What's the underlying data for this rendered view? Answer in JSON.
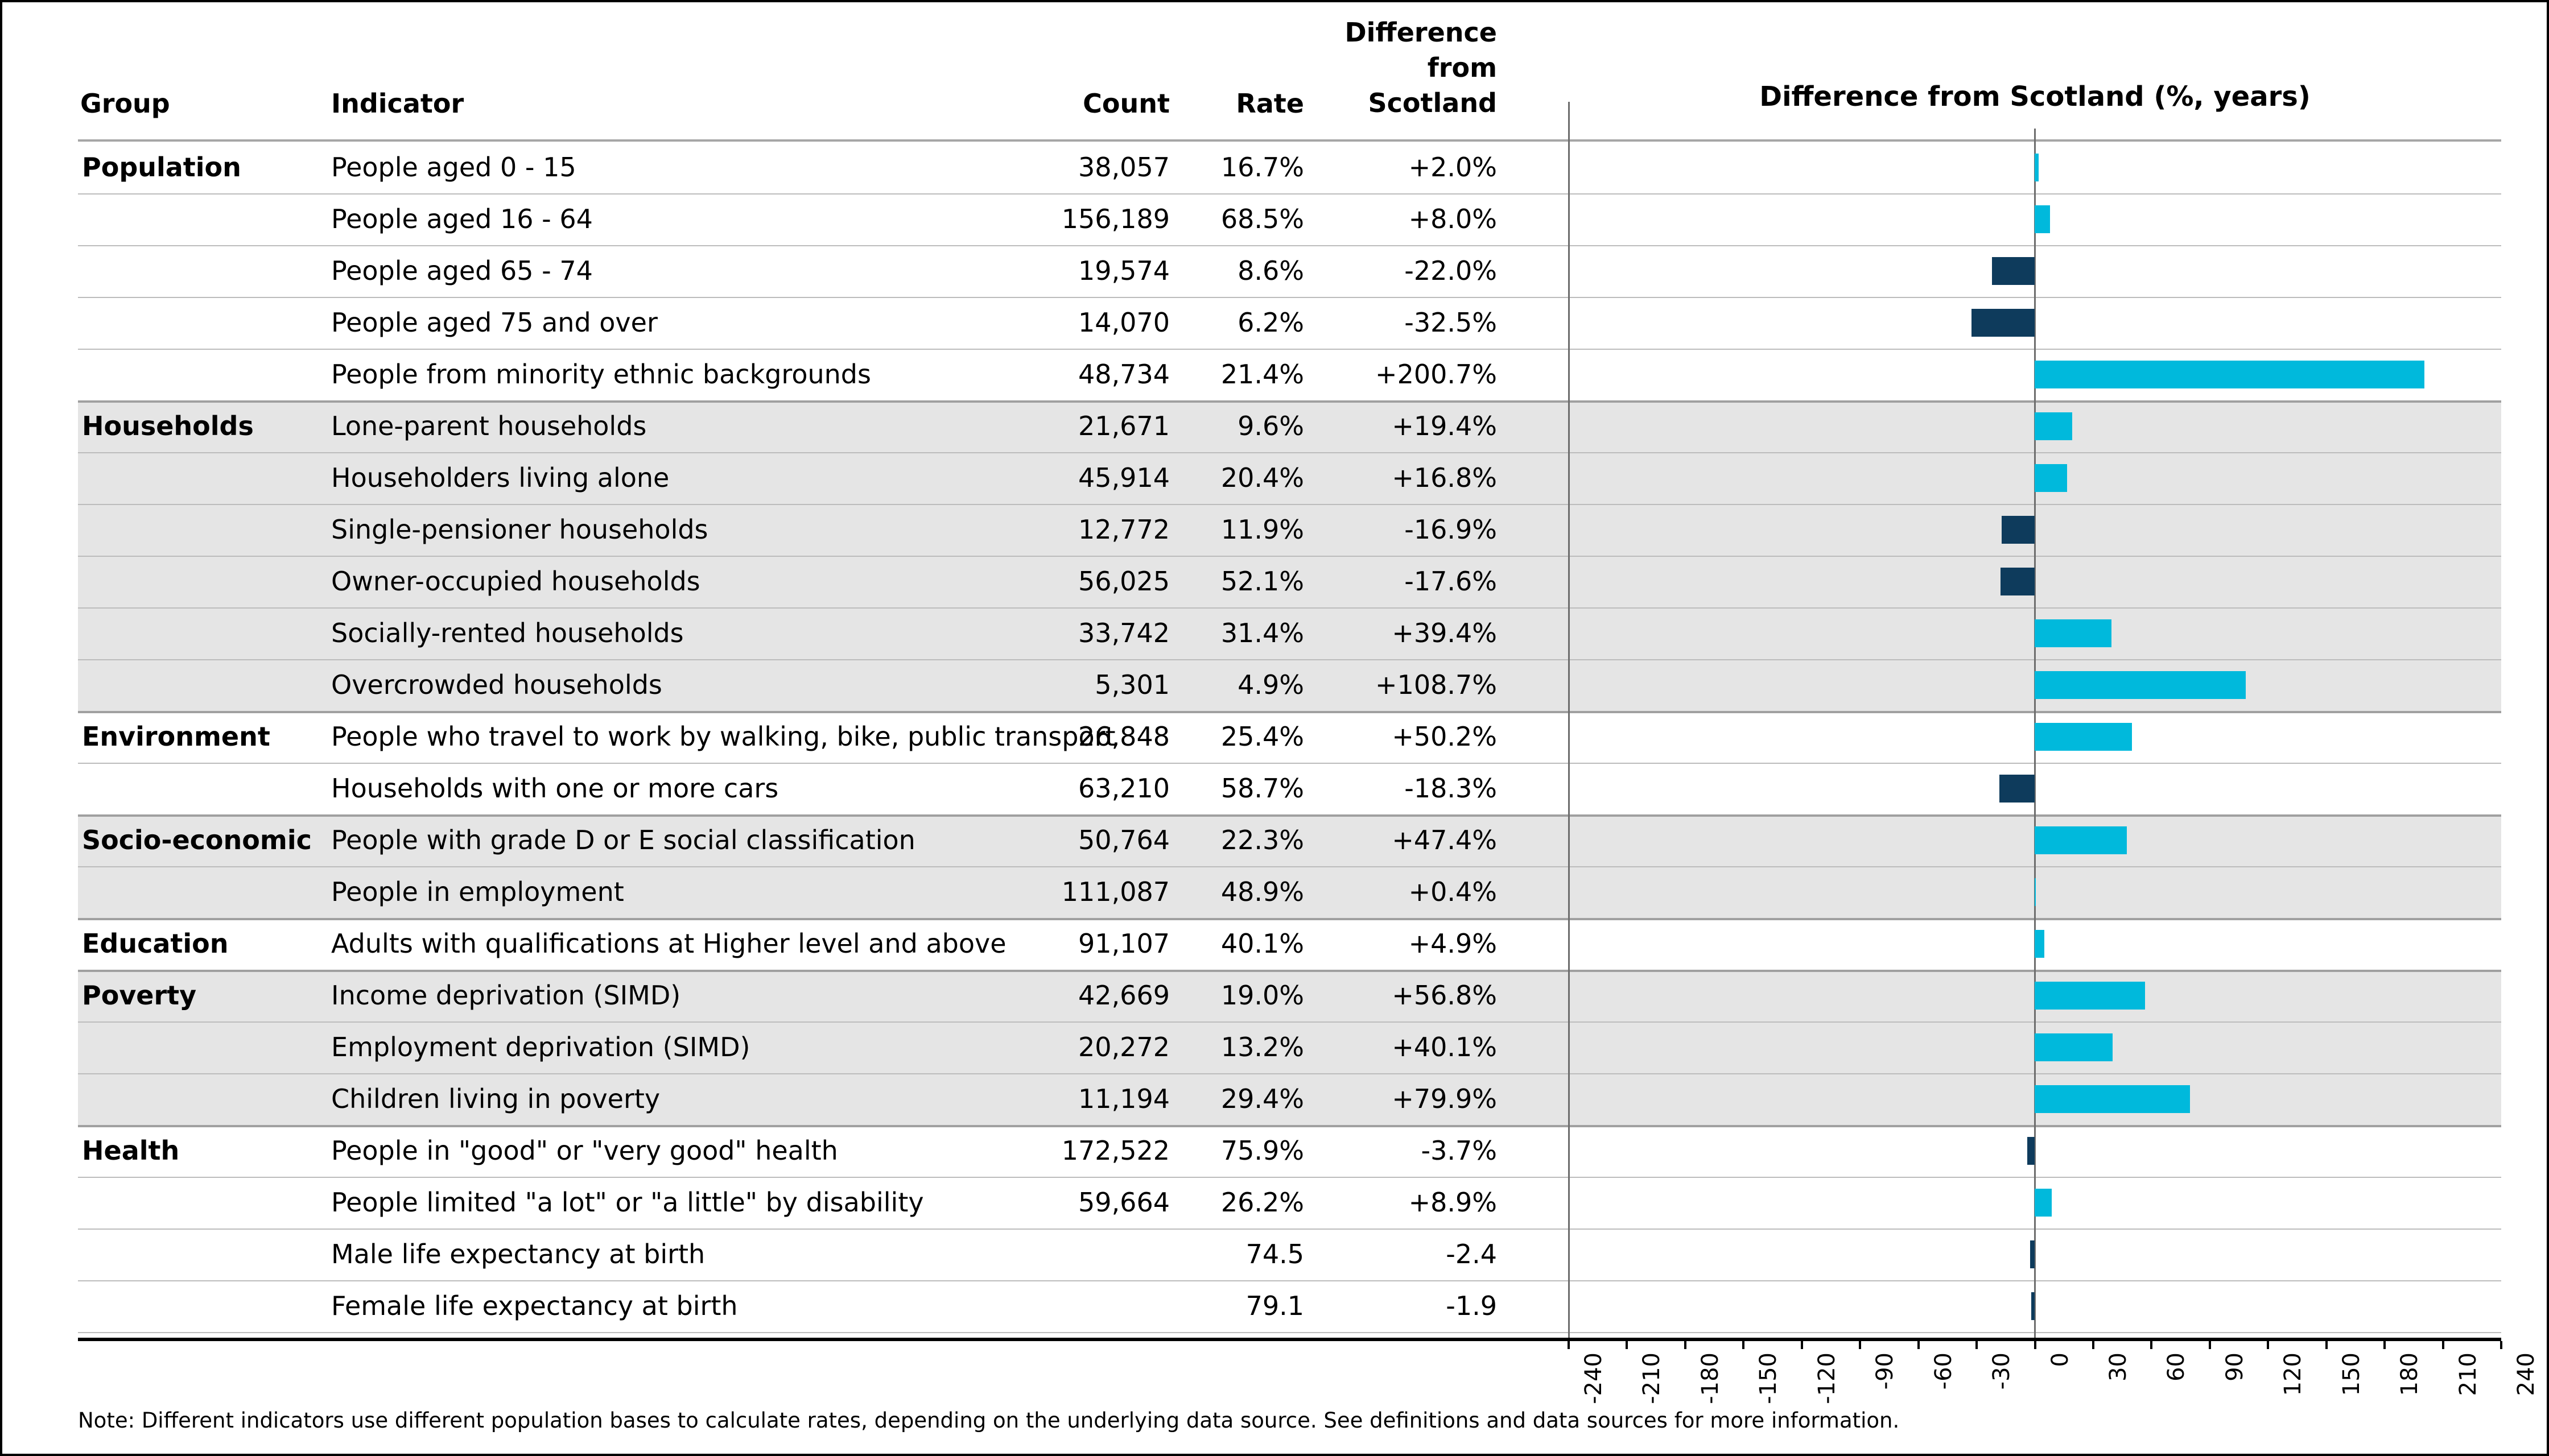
{
  "header": {
    "group": "Group",
    "indicator": "Indicator",
    "count": "Count",
    "rate": "Rate",
    "difference": "Difference\nfrom\nScotland"
  },
  "chart": {
    "title": "Difference from Scotland (%, years)",
    "ticks": [
      "-240",
      "-210",
      "-180",
      "-150",
      "-120",
      "-90",
      "-60",
      "-30",
      "0",
      "30",
      "60",
      "90",
      "120",
      "150",
      "180",
      "210",
      "240"
    ],
    "axis_min": -240,
    "axis_max": 240,
    "tick_interval": 30,
    "positive_color": "#00b9dc",
    "negative_color": "#0e3b5c",
    "band_color": "#e5e5e5"
  },
  "note": "Note: Different indicators use different population bases to calculate rates, depending on the underlying data source. See definitions and data sources for more information.",
  "rows": [
    {
      "group": "Population",
      "indicator": "People aged 0 - 15",
      "count": "38,057",
      "rate": "16.7%",
      "diff": "+2.0%",
      "value": 2.0,
      "gray": false,
      "group_start": true
    },
    {
      "group": "",
      "indicator": "People aged 16 - 64",
      "count": "156,189",
      "rate": "68.5%",
      "diff": "+8.0%",
      "value": 8.0,
      "gray": false,
      "group_start": false
    },
    {
      "group": "",
      "indicator": "People aged 65 - 74",
      "count": "19,574",
      "rate": "8.6%",
      "diff": "-22.0%",
      "value": -22.0,
      "gray": false,
      "group_start": false
    },
    {
      "group": "",
      "indicator": "People aged 75 and over",
      "count": "14,070",
      "rate": "6.2%",
      "diff": "-32.5%",
      "value": -32.5,
      "gray": false,
      "group_start": false
    },
    {
      "group": "",
      "indicator": "People from minority ethnic backgrounds",
      "count": "48,734",
      "rate": "21.4%",
      "diff": "+200.7%",
      "value": 200.7,
      "gray": false,
      "group_start": false
    },
    {
      "group": "Households",
      "indicator": "Lone-parent households",
      "count": "21,671",
      "rate": "9.6%",
      "diff": "+19.4%",
      "value": 19.4,
      "gray": true,
      "group_start": true
    },
    {
      "group": "",
      "indicator": "Householders living alone",
      "count": "45,914",
      "rate": "20.4%",
      "diff": "+16.8%",
      "value": 16.8,
      "gray": true,
      "group_start": false
    },
    {
      "group": "",
      "indicator": "Single-pensioner households",
      "count": "12,772",
      "rate": "11.9%",
      "diff": "-16.9%",
      "value": -16.9,
      "gray": true,
      "group_start": false
    },
    {
      "group": "",
      "indicator": "Owner-occupied households",
      "count": "56,025",
      "rate": "52.1%",
      "diff": "-17.6%",
      "value": -17.6,
      "gray": true,
      "group_start": false
    },
    {
      "group": "",
      "indicator": "Socially-rented households",
      "count": "33,742",
      "rate": "31.4%",
      "diff": "+39.4%",
      "value": 39.4,
      "gray": true,
      "group_start": false
    },
    {
      "group": "",
      "indicator": "Overcrowded households",
      "count": "5,301",
      "rate": "4.9%",
      "diff": "+108.7%",
      "value": 108.7,
      "gray": true,
      "group_start": false
    },
    {
      "group": "Environment",
      "indicator": "People who travel to work by walking, bike, public transport",
      "count": "26,848",
      "rate": "25.4%",
      "diff": "+50.2%",
      "value": 50.2,
      "gray": false,
      "group_start": true
    },
    {
      "group": "",
      "indicator": "Households with one or more cars",
      "count": "63,210",
      "rate": "58.7%",
      "diff": "-18.3%",
      "value": -18.3,
      "gray": false,
      "group_start": false
    },
    {
      "group": "Socio-economic",
      "indicator": "People with grade D or E social classification",
      "count": "50,764",
      "rate": "22.3%",
      "diff": "+47.4%",
      "value": 47.4,
      "gray": true,
      "group_start": true
    },
    {
      "group": "",
      "indicator": "People in employment",
      "count": "111,087",
      "rate": "48.9%",
      "diff": "+0.4%",
      "value": 0.4,
      "gray": true,
      "group_start": false
    },
    {
      "group": "Education",
      "indicator": "Adults with qualifications at Higher level and above",
      "count": "91,107",
      "rate": "40.1%",
      "diff": "+4.9%",
      "value": 4.9,
      "gray": false,
      "group_start": true
    },
    {
      "group": "Poverty",
      "indicator": "Income deprivation (SIMD)",
      "count": "42,669",
      "rate": "19.0%",
      "diff": "+56.8%",
      "value": 56.8,
      "gray": true,
      "group_start": true
    },
    {
      "group": "",
      "indicator": "Employment deprivation (SIMD)",
      "count": "20,272",
      "rate": "13.2%",
      "diff": "+40.1%",
      "value": 40.1,
      "gray": true,
      "group_start": false
    },
    {
      "group": "",
      "indicator": "Children living in poverty",
      "count": "11,194",
      "rate": "29.4%",
      "diff": "+79.9%",
      "value": 79.9,
      "gray": true,
      "group_start": false
    },
    {
      "group": "Health",
      "indicator": "People in \"good\" or \"very good\" health",
      "count": "172,522",
      "rate": "75.9%",
      "diff": "-3.7%",
      "value": -3.7,
      "gray": false,
      "group_start": true
    },
    {
      "group": "",
      "indicator": "People limited \"a lot\" or \"a little\" by disability",
      "count": "59,664",
      "rate": "26.2%",
      "diff": "+8.9%",
      "value": 8.9,
      "gray": false,
      "group_start": false
    },
    {
      "group": "",
      "indicator": "Male life expectancy at birth",
      "count": "",
      "rate": "74.5",
      "diff": "-2.4",
      "value": -2.4,
      "gray": false,
      "group_start": false
    },
    {
      "group": "",
      "indicator": "Female life expectancy at birth",
      "count": "",
      "rate": "79.1",
      "diff": "-1.9",
      "value": -1.9,
      "gray": false,
      "group_start": false
    }
  ],
  "chart_data": {
    "type": "bar",
    "orientation": "horizontal",
    "title": "Difference from Scotland (%, years)",
    "categories": [
      "People aged 0 - 15",
      "People aged 16 - 64",
      "People aged 65 - 74",
      "People aged 75 and over",
      "People from minority ethnic backgrounds",
      "Lone-parent households",
      "Householders living alone",
      "Single-pensioner households",
      "Owner-occupied households",
      "Socially-rented households",
      "Overcrowded households",
      "People who travel to work by walking, bike, public transport",
      "Households with one or more cars",
      "People with grade D or E social classification",
      "People in employment",
      "Adults with qualifications at Higher level and above",
      "Income deprivation (SIMD)",
      "Employment deprivation (SIMD)",
      "Children living in poverty",
      "People in \"good\" or \"very good\" health",
      "People limited \"a lot\" or \"a little\" by disability",
      "Male life expectancy at birth",
      "Female life expectancy at birth"
    ],
    "values": [
      2.0,
      8.0,
      -22.0,
      -32.5,
      200.7,
      19.4,
      16.8,
      -16.9,
      -17.6,
      39.4,
      108.7,
      50.2,
      -18.3,
      47.4,
      0.4,
      4.9,
      56.8,
      40.1,
      79.9,
      -3.7,
      8.9,
      -2.4,
      -1.9
    ],
    "xlim": [
      -240,
      240
    ],
    "tick_interval": 30,
    "grid": false,
    "legend": false,
    "positive_color": "#00b9dc",
    "negative_color": "#0e3b5c"
  }
}
